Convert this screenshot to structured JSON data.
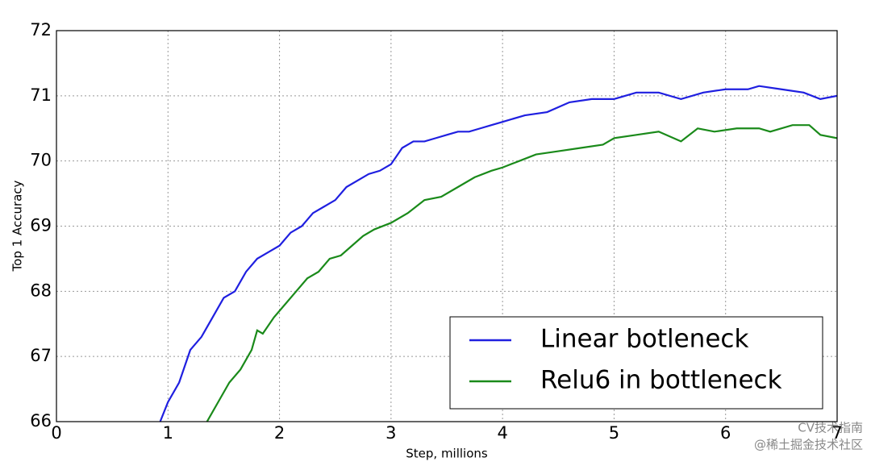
{
  "chart_data": {
    "type": "line",
    "xlabel": "Step, millions",
    "ylabel": "Top 1 Accuracy",
    "xlim": [
      0,
      7
    ],
    "ylim": [
      66,
      72
    ],
    "xticks": [
      0,
      1,
      2,
      3,
      4,
      5,
      6,
      7
    ],
    "yticks": [
      66,
      67,
      68,
      69,
      70,
      71,
      72
    ],
    "grid": true,
    "legend": "lower right",
    "series": [
      {
        "name": "Linear botleneck",
        "color": "#1f1fe0",
        "x": [
          0.93,
          1.0,
          1.1,
          1.2,
          1.3,
          1.4,
          1.5,
          1.6,
          1.7,
          1.8,
          1.9,
          2.0,
          2.1,
          2.2,
          2.3,
          2.4,
          2.5,
          2.6,
          2.7,
          2.8,
          2.9,
          3.0,
          3.1,
          3.2,
          3.3,
          3.4,
          3.5,
          3.6,
          3.7,
          3.8,
          3.9,
          4.0,
          4.2,
          4.4,
          4.6,
          4.8,
          5.0,
          5.2,
          5.4,
          5.6,
          5.8,
          6.0,
          6.2,
          6.3,
          6.5,
          6.7,
          6.85,
          7.0
        ],
        "values": [
          66.0,
          66.3,
          66.6,
          67.1,
          67.3,
          67.6,
          67.9,
          68.0,
          68.3,
          68.5,
          68.6,
          68.7,
          68.9,
          69.0,
          69.2,
          69.3,
          69.4,
          69.6,
          69.7,
          69.8,
          69.85,
          69.95,
          70.2,
          70.3,
          70.3,
          70.35,
          70.4,
          70.45,
          70.45,
          70.5,
          70.55,
          70.6,
          70.7,
          70.75,
          70.9,
          70.95,
          70.95,
          71.05,
          71.05,
          70.95,
          71.05,
          71.1,
          71.1,
          71.15,
          71.1,
          71.05,
          70.95,
          71.0
        ]
      },
      {
        "name": "Relu6 in bottleneck",
        "color": "#1a8a1a",
        "x": [
          1.35,
          1.45,
          1.55,
          1.65,
          1.75,
          1.8,
          1.85,
          1.95,
          2.05,
          2.15,
          2.25,
          2.35,
          2.45,
          2.55,
          2.65,
          2.75,
          2.85,
          3.0,
          3.15,
          3.3,
          3.45,
          3.6,
          3.75,
          3.9,
          4.0,
          4.15,
          4.3,
          4.5,
          4.7,
          4.9,
          5.0,
          5.2,
          5.4,
          5.6,
          5.75,
          5.9,
          6.1,
          6.3,
          6.4,
          6.6,
          6.75,
          6.85,
          7.0
        ],
        "values": [
          66.0,
          66.3,
          66.6,
          66.8,
          67.1,
          67.4,
          67.35,
          67.6,
          67.8,
          68.0,
          68.2,
          68.3,
          68.5,
          68.55,
          68.7,
          68.85,
          68.95,
          69.05,
          69.2,
          69.4,
          69.45,
          69.6,
          69.75,
          69.85,
          69.9,
          70.0,
          70.1,
          70.15,
          70.2,
          70.25,
          70.35,
          70.4,
          70.45,
          70.3,
          70.5,
          70.45,
          70.5,
          70.5,
          70.45,
          70.55,
          70.55,
          70.4,
          70.35
        ]
      }
    ],
    "watermark": [
      "CV技术指南",
      "@稀土掘金技术社区"
    ]
  }
}
